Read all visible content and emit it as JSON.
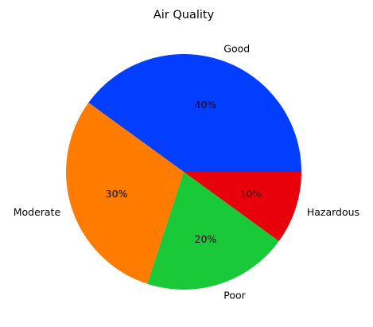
{
  "chart_data": {
    "type": "pie",
    "title": "Air Quality",
    "slices": [
      {
        "label": "Good",
        "value": 40,
        "pct_label": "40%",
        "color": "#023eff"
      },
      {
        "label": "Moderate",
        "value": 30,
        "pct_label": "30%",
        "color": "#ff7c00"
      },
      {
        "label": "Poor",
        "value": 20,
        "pct_label": "20%",
        "color": "#1ac938"
      },
      {
        "label": "Hazardous",
        "value": 10,
        "pct_label": "10%",
        "color": "#e8000b"
      }
    ],
    "start_angle_deg": 0,
    "direction": "counterclockwise",
    "legend": "none"
  }
}
